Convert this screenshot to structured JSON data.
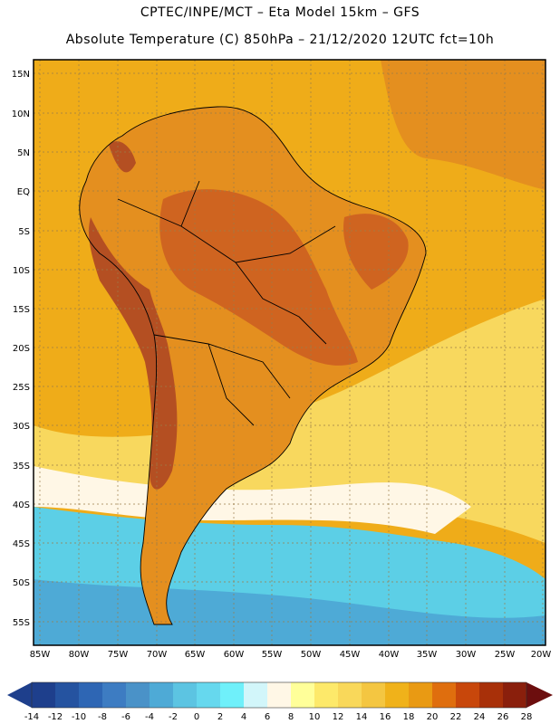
{
  "header": {
    "line1": "CPTEC/INPE/MCT –  Eta Model 15km – GFS",
    "line2": "Absolute Temperature (C) 850hPa – 21/12/2020 12UTC fct=10h"
  },
  "axes": {
    "lat_labels": [
      "15N",
      "10N",
      "5N",
      "EQ",
      "5S",
      "10S",
      "15S",
      "20S",
      "25S",
      "30S",
      "35S",
      "40S",
      "45S",
      "50S",
      "55S"
    ],
    "lon_labels": [
      "85W",
      "80W",
      "75W",
      "70W",
      "65W",
      "60W",
      "55W",
      "50W",
      "45W",
      "40W",
      "35W",
      "30W",
      "25W",
      "20W"
    ]
  },
  "colorbar": {
    "labels": [
      "-14",
      "-12",
      "-10",
      "-8",
      "-6",
      "-4",
      "-2",
      "0",
      "2",
      "4",
      "6",
      "8",
      "10",
      "12",
      "14",
      "16",
      "18",
      "20",
      "22",
      "24",
      "26",
      "28"
    ],
    "colors": [
      "#1e3f8c",
      "#2553a0",
      "#2e66b4",
      "#3d7cc2",
      "#4a92c8",
      "#4eaad6",
      "#5cc4e2",
      "#66d8ee",
      "#6ff0fa",
      "#d2f6fa",
      "#fff7e6",
      "#ffff99",
      "#fde96a",
      "#f9d85a",
      "#f4c641",
      "#f0b21a",
      "#e99a13",
      "#df6e0e",
      "#c8470b",
      "#a83009",
      "#8a1f0c",
      "#6c0e0e"
    ]
  },
  "map": {
    "background_color": "#efac19",
    "land_warm": "#e48f1f",
    "land_hot": "#cf6420",
    "andes_hot": "#b44f22",
    "ocean_cool": "#f8d85e",
    "ocean_cold": "#5ccfe6",
    "ocean_colder": "#4eaad6",
    "pale": "#fff7e6"
  }
}
